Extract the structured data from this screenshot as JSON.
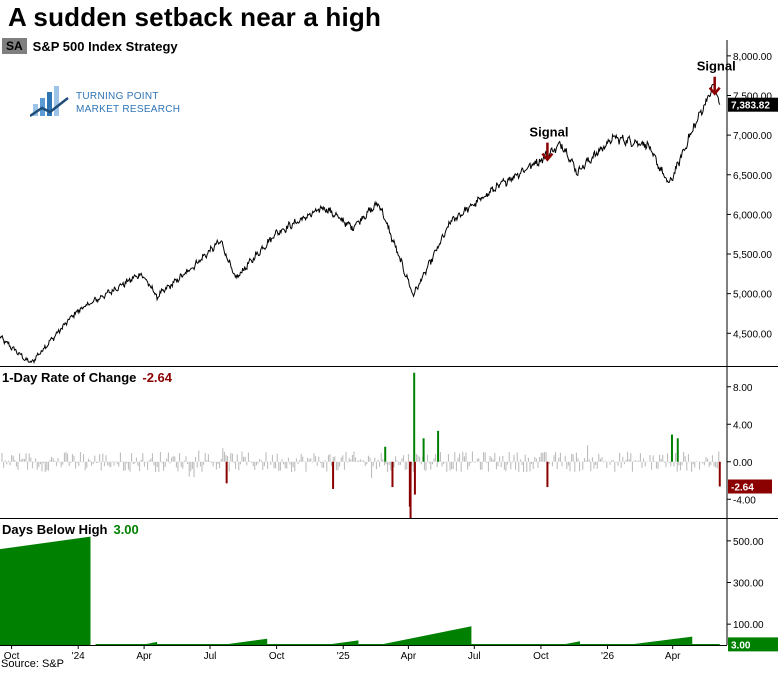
{
  "header": {
    "title": "A sudden setback near a high",
    "badge": "SA",
    "subtitle": "S&P 500 Index  Strategy"
  },
  "logo": {
    "line1": "TURNING POINT",
    "line2": "MARKET RESEARCH"
  },
  "source": "Source: S&P",
  "colors": {
    "price": "#000000",
    "roc_neutral": "#b7b7b7",
    "roc_up": "#008000",
    "roc_down": "#8b0000",
    "days_fill": "#008000",
    "signal": "#8b0000"
  },
  "chart_data": [
    {
      "type": "line",
      "title": "S&P 500 Index",
      "x": [
        "2023-09-15",
        "2023-10-27",
        "2023-12-29",
        "2024-03-28",
        "2024-04-19",
        "2024-05-31",
        "2024-07-16",
        "2024-08-05",
        "2024-09-30",
        "2024-12-06",
        "2025-01-13",
        "2025-02-19",
        "2025-04-08",
        "2025-05-30",
        "2025-07-31",
        "2025-09-30",
        "2025-10-30",
        "2025-11-20",
        "2026-01-09",
        "2026-02-25",
        "2026-03-27",
        "2026-04-30",
        "2026-05-28",
        "2026-06-05"
      ],
      "y": [
        4450,
        4117,
        4770,
        5254,
        4967,
        5277,
        5667,
        5186,
        5762,
        6090,
        5836,
        6144,
        4982,
        5911,
        6339,
        6688,
        6890,
        6538,
        6966,
        6880,
        6370,
        7100,
        7630,
        7383.82
      ],
      "yticks": [
        "4,500.00",
        "5,000.00",
        "5,500.00",
        "6,000.00",
        "6,500.00",
        "7,000.00",
        "7,500.00",
        "8,000.00"
      ],
      "ylim": [
        4100,
        8200
      ],
      "last_value": "7,383.82",
      "annotations": [
        {
          "text": "Signal",
          "x": "2025-10-10",
          "y": 6552
        },
        {
          "text": "Signal",
          "x": "2026-05-29",
          "y": 7383.82
        }
      ]
    },
    {
      "type": "bar",
      "title": "1-Day Rate of Change",
      "last_label": "-2.64",
      "yticks": [
        "-4.00",
        "0.00",
        "4.00",
        "8.00"
      ],
      "ylim": [
        -6,
        10
      ],
      "highlights": [
        {
          "x": "2024-07-24",
          "value": -2.3
        },
        {
          "x": "2024-12-18",
          "value": -2.9
        },
        {
          "x": "2025-02-28",
          "value": 1.6
        },
        {
          "x": "2025-03-10",
          "value": -2.7
        },
        {
          "x": "2025-04-03",
          "value": -4.8
        },
        {
          "x": "2025-04-04",
          "value": -6.0
        },
        {
          "x": "2025-04-09",
          "value": 9.5
        },
        {
          "x": "2025-04-10",
          "value": -3.5
        },
        {
          "x": "2025-04-22",
          "value": 2.5
        },
        {
          "x": "2025-05-12",
          "value": 3.3
        },
        {
          "x": "2025-10-10",
          "value": -2.7
        },
        {
          "x": "2026-03-31",
          "value": 2.9
        },
        {
          "x": "2026-04-08",
          "value": 2.5
        },
        {
          "x": "2026-06-05",
          "value": -2.64
        }
      ]
    },
    {
      "type": "area",
      "title": "Days Below High",
      "last_label": "3.00",
      "yticks": [
        "100.00",
        "300.00",
        "500.00"
      ],
      "ylim": [
        0,
        600
      ],
      "segments": [
        {
          "start": "2023-09-15",
          "end": "2024-01-18",
          "from": 460,
          "to": 520
        },
        {
          "start": "2024-03-28",
          "end": "2024-04-19",
          "from": 0,
          "to": 15
        },
        {
          "start": "2024-07-16",
          "end": "2024-09-18",
          "from": 0,
          "to": 30
        },
        {
          "start": "2024-12-06",
          "end": "2025-01-22",
          "from": 0,
          "to": 22
        },
        {
          "start": "2025-02-19",
          "end": "2025-06-27",
          "from": 0,
          "to": 90
        },
        {
          "start": "2025-10-28",
          "end": "2025-11-24",
          "from": 0,
          "to": 18
        },
        {
          "start": "2026-01-27",
          "end": "2026-04-28",
          "from": 0,
          "to": 40
        }
      ]
    }
  ],
  "xaxis": {
    "ticks": [
      {
        "label": "Oct",
        "date": "2023-10-01"
      },
      {
        "label": "'24",
        "date": "2024-01-01"
      },
      {
        "label": "Apr",
        "date": "2024-04-01"
      },
      {
        "label": "Jul",
        "date": "2024-07-01"
      },
      {
        "label": "Oct",
        "date": "2024-10-01"
      },
      {
        "label": "'25",
        "date": "2025-01-01"
      },
      {
        "label": "Apr",
        "date": "2025-04-01"
      },
      {
        "label": "Jul",
        "date": "2025-07-01"
      },
      {
        "label": "Oct",
        "date": "2025-10-01"
      },
      {
        "label": "'26",
        "date": "2026-01-01"
      },
      {
        "label": "Apr",
        "date": "2026-04-01"
      }
    ]
  }
}
